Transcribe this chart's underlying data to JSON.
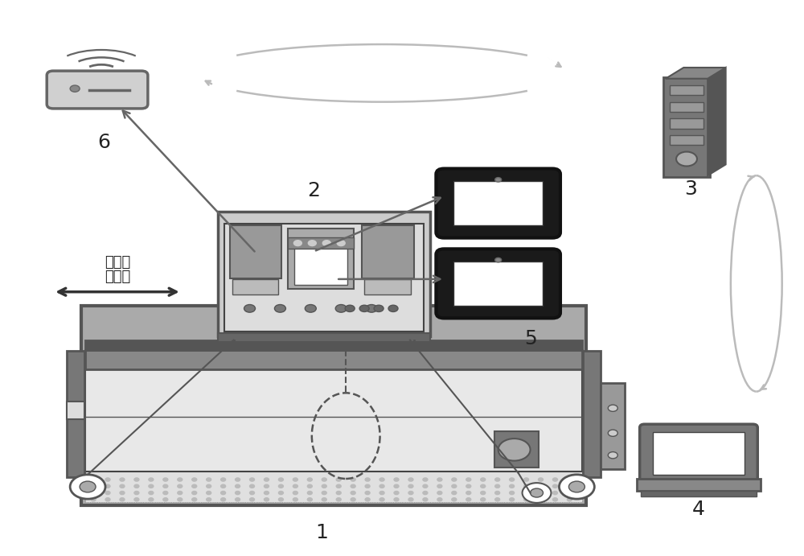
{
  "bg_color": "#ffffff",
  "fig_width": 10.0,
  "fig_height": 6.91,
  "label_fontsize": 18,
  "label_color": "#222222",
  "arrow_color": "#666666",
  "light_arrow_color": "#bbbbbb",
  "machine_color": "#555555",
  "machine_fill": "#d8d8d8",
  "inner_fill": "#eeeeee",
  "dark_fill": "#888888",
  "tablet_border": "#1a1a1a",
  "router_color": "#666666",
  "desktop_color": "#555555",
  "laptop_color": "#555555",
  "chinese_text1": "碎压前",
  "chinese_text2": "进后退"
}
